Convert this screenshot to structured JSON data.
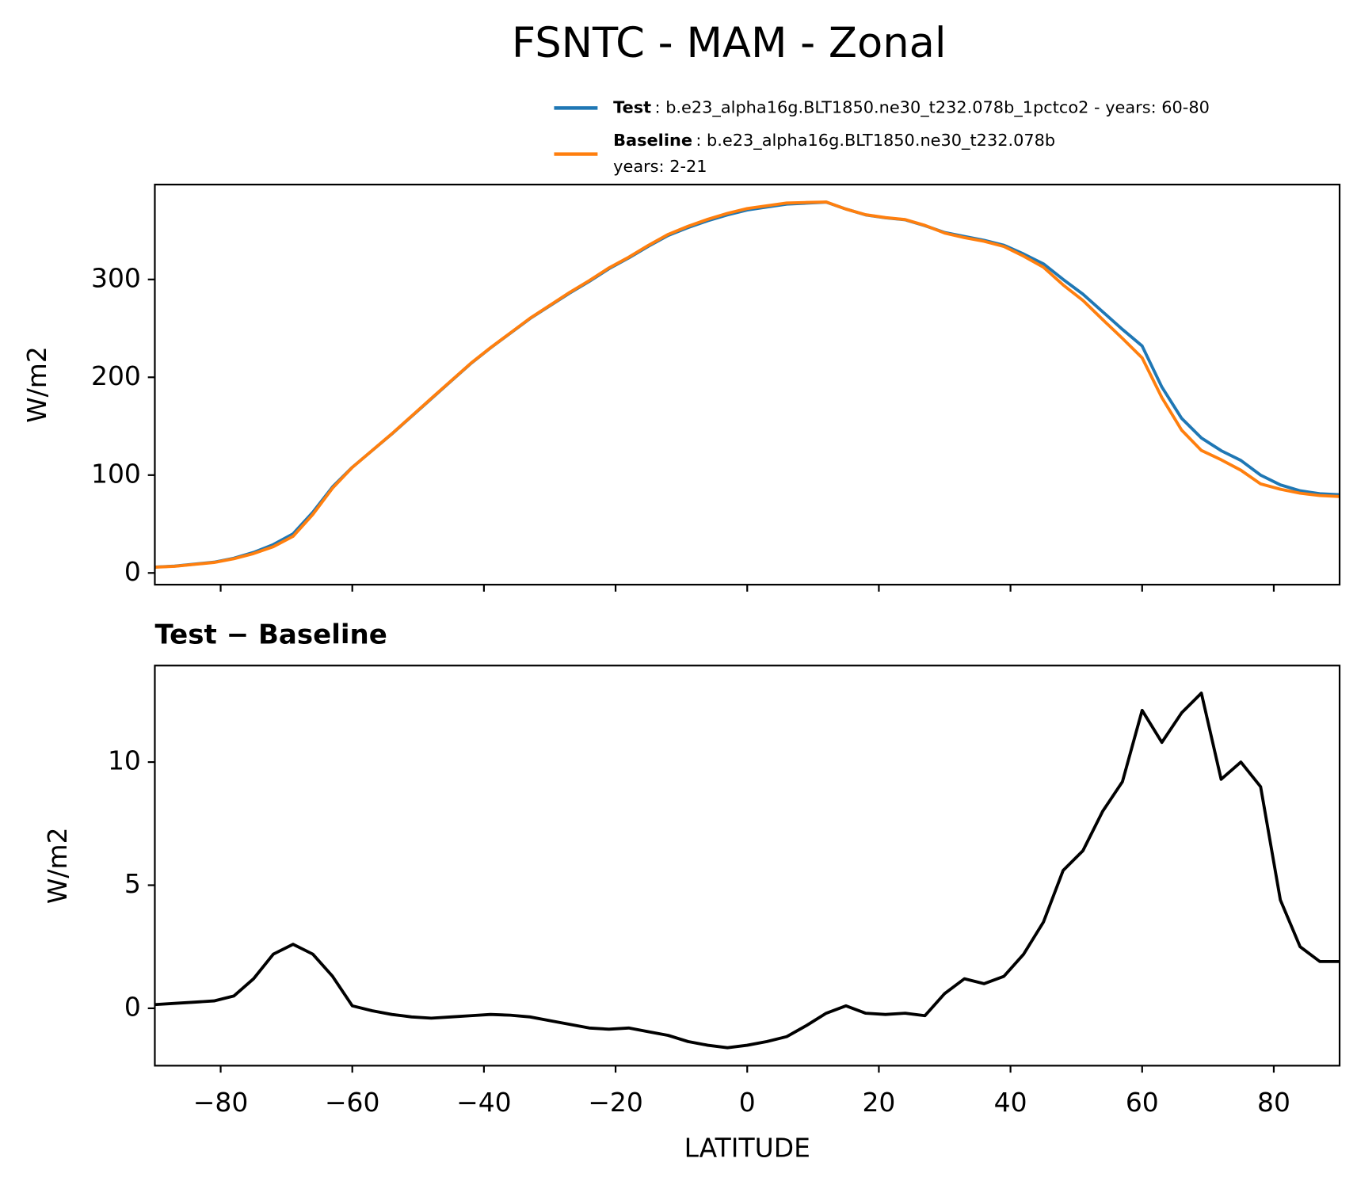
{
  "chart_data": [
    {
      "type": "line",
      "title": "FSNTC - MAM - Zonal",
      "ylabel": "W/m2",
      "x": [
        -90,
        -87,
        -84,
        -81,
        -78,
        -75,
        -72,
        -69,
        -66,
        -63,
        -60,
        -57,
        -54,
        -51,
        -48,
        -45,
        -42,
        -39,
        -36,
        -33,
        -30,
        -27,
        -24,
        -21,
        -18,
        -15,
        -12,
        -9,
        -6,
        -3,
        0,
        3,
        6,
        9,
        12,
        15,
        18,
        21,
        24,
        27,
        30,
        33,
        36,
        39,
        42,
        45,
        48,
        51,
        54,
        57,
        60,
        63,
        66,
        69,
        72,
        75,
        78,
        81,
        84,
        87,
        90
      ],
      "series": [
        {
          "name": "Test",
          "description": ": b.e23_alpha16g.BLT1850.ne30_t232.078b_1pctco2 - years: 60-80",
          "color": "#1f77b4",
          "values": [
            6,
            7,
            9,
            11,
            15,
            21,
            29,
            40,
            62,
            88,
            108,
            125,
            142,
            160,
            178,
            196,
            214,
            230,
            245,
            260,
            273,
            286,
            298,
            311,
            322,
            334,
            345,
            353,
            360,
            366,
            371,
            374,
            377,
            378,
            379,
            372,
            366,
            363,
            361,
            355,
            348,
            344,
            340,
            335,
            326,
            316,
            300,
            285,
            267,
            249,
            232,
            190,
            158,
            138,
            125,
            115,
            100,
            90,
            84,
            81,
            80
          ]
        },
        {
          "name": "Baseline",
          "description": [
            ": b.e23_alpha16g.BLT1850.ne30_t232.078b",
            "years: 2-21"
          ],
          "color": "#ff7f0e",
          "values": [
            5.85,
            6.8,
            8.75,
            10.7,
            14.5,
            19.8,
            26.8,
            37.4,
            59.8,
            86.7,
            107.9,
            125.1,
            142.25,
            160.35,
            178.4,
            196.35,
            214.3,
            230.25,
            245.28,
            260.35,
            273.5,
            286.65,
            298.8,
            311.85,
            322.8,
            334.95,
            346.1,
            354.35,
            361.5,
            367.6,
            372.5,
            375.35,
            378.15,
            378.7,
            379.2,
            371.9,
            366.2,
            363.25,
            361.2,
            355.3,
            347.4,
            342.8,
            339,
            333.7,
            323.8,
            312.5,
            294.4,
            278.6,
            259,
            239.8,
            219.9,
            179.2,
            146,
            125.2,
            115.7,
            105,
            91,
            85.6,
            81.5,
            79.1,
            78.1
          ]
        }
      ],
      "xlim": [
        -90,
        90
      ],
      "xticks": [
        -80,
        -60,
        -40,
        -20,
        0,
        20,
        40,
        60,
        80
      ],
      "ylim": [
        -12,
        397
      ],
      "yticks": [
        0,
        100,
        200,
        300
      ]
    },
    {
      "type": "line",
      "title": "Test − Baseline",
      "ylabel": "W/m2",
      "xlabel": "LATITUDE",
      "x": [
        -90,
        -87,
        -84,
        -81,
        -78,
        -75,
        -72,
        -69,
        -66,
        -63,
        -60,
        -57,
        -54,
        -51,
        -48,
        -45,
        -42,
        -39,
        -36,
        -33,
        -30,
        -27,
        -24,
        -21,
        -18,
        -15,
        -12,
        -9,
        -6,
        -3,
        0,
        3,
        6,
        9,
        12,
        15,
        18,
        21,
        24,
        27,
        30,
        33,
        36,
        39,
        42,
        45,
        48,
        51,
        54,
        57,
        60,
        63,
        66,
        69,
        72,
        75,
        78,
        81,
        84,
        87,
        90
      ],
      "series": [
        {
          "color": "#000000",
          "values": [
            0.15,
            0.2,
            0.25,
            0.3,
            0.5,
            1.2,
            2.2,
            2.6,
            2.2,
            1.3,
            0.1,
            -0.1,
            -0.25,
            -0.35,
            -0.4,
            -0.35,
            -0.3,
            -0.25,
            -0.28,
            -0.35,
            -0.5,
            -0.65,
            -0.8,
            -0.85,
            -0.8,
            -0.95,
            -1.1,
            -1.35,
            -1.5,
            -1.6,
            -1.5,
            -1.35,
            -1.15,
            -0.7,
            -0.2,
            0.1,
            -0.2,
            -0.25,
            -0.2,
            -0.3,
            0.6,
            1.2,
            1.0,
            1.3,
            2.2,
            3.5,
            5.6,
            6.4,
            8.0,
            9.2,
            12.1,
            10.8,
            12.0,
            12.8,
            9.3,
            10.0,
            9.0,
            4.4,
            2.5,
            1.9,
            1.9
          ]
        }
      ],
      "xlim": [
        -90,
        90
      ],
      "xticks": [
        {
          "value": -80,
          "label": "−80"
        },
        {
          "value": -60,
          "label": "−60"
        },
        {
          "value": -40,
          "label": "−40"
        },
        {
          "value": -20,
          "label": "−20"
        },
        0,
        20,
        40,
        60,
        80
      ],
      "ylim": [
        -2.33,
        13.92
      ],
      "yticks": [
        0,
        5,
        10
      ]
    }
  ]
}
